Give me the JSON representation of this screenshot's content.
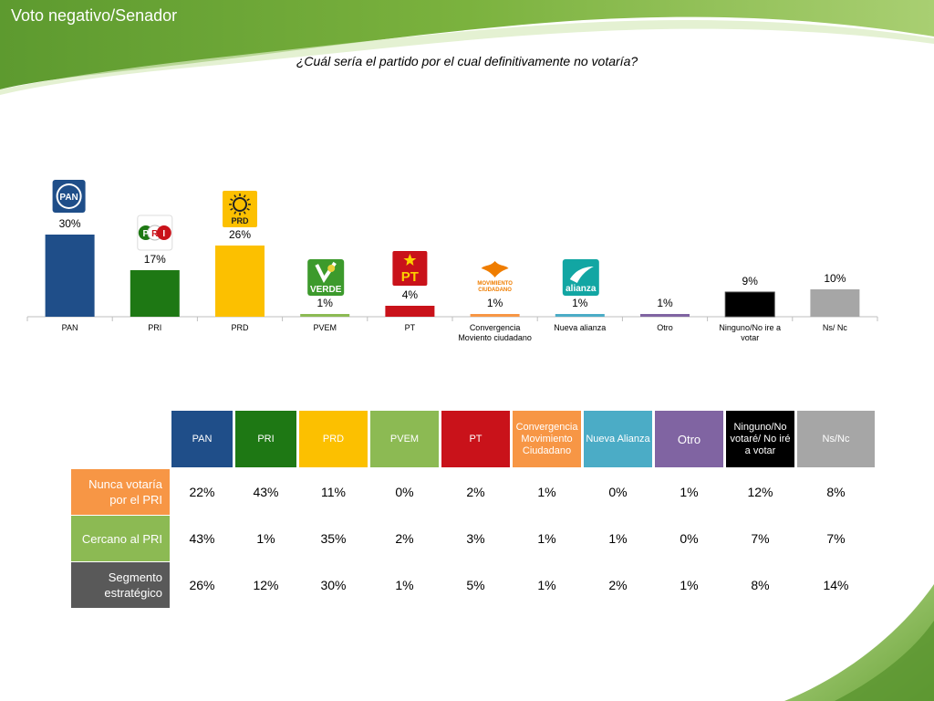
{
  "slide": {
    "title": "Voto negativo/Senador",
    "question": "¿Cuál sería el partido por el cual definitivamente no votaría?"
  },
  "colors": {
    "PAN": "#1f4e89",
    "PRI": "#1e7814",
    "PRD": "#fcc000",
    "PVEM": "#8cba53",
    "PT": "#c9121a",
    "Convergencia": "#f79645",
    "Nueva alianza": "#4bacc6",
    "Otro": "#8064a2",
    "Ninguno": "#000000",
    "NsNc": "#a6a6a6",
    "row_nunca": "#f79645",
    "row_cercano": "#8cba53",
    "row_segmento": "#595959",
    "header_green": "#6aa339"
  },
  "party_logos": [
    {
      "party": "PAN",
      "icon": "pan-logo",
      "text": "PAN"
    },
    {
      "party": "PRI",
      "icon": "pri-logo",
      "text": "PRI"
    },
    {
      "party": "PRD",
      "icon": "prd-logo",
      "text": "PRD"
    },
    {
      "party": "PVEM",
      "icon": "verde-logo",
      "text": "VERDE"
    },
    {
      "party": "PT",
      "icon": "pt-logo",
      "text": "PT"
    },
    {
      "party": "Convergencia",
      "icon": "movimiento-ciudadano-logo",
      "text": "MOVIMIENTO CIUDADANO"
    },
    {
      "party": "Nueva alianza",
      "icon": "nueva-alianza-logo",
      "text": "alianza"
    }
  ],
  "chart_data": {
    "type": "bar",
    "categories": [
      "PAN",
      "PRI",
      "PRD",
      "PVEM",
      "PT",
      "Convergencia Moviento ciudadano",
      "Nueva alianza",
      "Otro",
      "Ninguno/No ire a votar",
      "Ns/ Nc"
    ],
    "values": [
      30,
      17,
      26,
      1,
      4,
      1,
      1,
      1,
      9,
      10
    ],
    "value_labels": [
      "30%",
      "17%",
      "26%",
      "1%",
      "4%",
      "1%",
      "1%",
      "1%",
      "9%",
      "10%"
    ],
    "bar_colors": [
      "#1f4e89",
      "#1e7814",
      "#fcc000",
      "#8cba53",
      "#c9121a",
      "#f79645",
      "#4bacc6",
      "#8064a2",
      "#000000",
      "#a6a6a6"
    ],
    "ylim": [
      0,
      30
    ],
    "grid": false,
    "xlabel": "",
    "ylabel": ""
  },
  "table": {
    "headers": [
      {
        "label": "PAN",
        "color": "#1f4e89"
      },
      {
        "label": "PRI",
        "color": "#1e7814"
      },
      {
        "label": "PRD",
        "color": "#fcc000"
      },
      {
        "label": "PVEM",
        "color": "#8cba53"
      },
      {
        "label": "PT",
        "color": "#c9121a"
      },
      {
        "label": "Convergencia Movimiento Ciudadano",
        "color": "#f79645"
      },
      {
        "label": "Nueva Alianza",
        "color": "#4bacc6"
      },
      {
        "label": "Otro",
        "color": "#8064a2"
      },
      {
        "label": "Ninguno/No votaré/ No iré a votar",
        "color": "#000000"
      },
      {
        "label": "Ns/Nc",
        "color": "#a6a6a6"
      }
    ],
    "rows": [
      {
        "label": "Nunca votaría por el PRI",
        "color": "#f79645",
        "values": [
          "22%",
          "43%",
          "11%",
          "0%",
          "2%",
          "1%",
          "0%",
          "1%",
          "12%",
          "8%"
        ]
      },
      {
        "label": "Cercano al PRI",
        "color": "#8cba53",
        "values": [
          "43%",
          "1%",
          "35%",
          "2%",
          "3%",
          "1%",
          "1%",
          "0%",
          "7%",
          "7%"
        ]
      },
      {
        "label": "Segmento estratégico",
        "color": "#595959",
        "values": [
          "26%",
          "12%",
          "30%",
          "1%",
          "5%",
          "1%",
          "2%",
          "1%",
          "8%",
          "14%"
        ]
      }
    ]
  }
}
